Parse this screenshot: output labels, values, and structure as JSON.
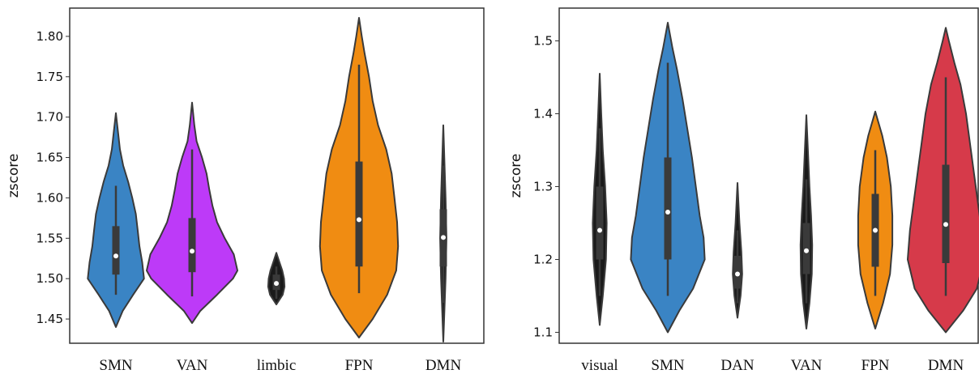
{
  "chart_data": [
    {
      "type": "violin",
      "ylabel": "zscore",
      "xlabel": "",
      "ylim": [
        1.42,
        1.835
      ],
      "yticks": [
        "1.45",
        "1.50",
        "1.55",
        "1.60",
        "1.65",
        "1.70",
        "1.75",
        "1.80"
      ],
      "categories": [
        "SMN",
        "VAN",
        "limbic",
        "FPN",
        "DMN"
      ],
      "violins": [
        {
          "label": "SMN",
          "color": "#3a84c4",
          "ymin": 1.44,
          "ymax": 1.705,
          "q1": 1.505,
          "median": 1.528,
          "q3": 1.565,
          "whisk_lo": 1.48,
          "whisk_hi": 1.615,
          "profile": [
            [
              1.44,
              0.0
            ],
            [
              1.46,
              0.15
            ],
            [
              1.48,
              0.38
            ],
            [
              1.5,
              0.62
            ],
            [
              1.52,
              0.58
            ],
            [
              1.54,
              0.52
            ],
            [
              1.56,
              0.48
            ],
            [
              1.58,
              0.44
            ],
            [
              1.6,
              0.36
            ],
            [
              1.62,
              0.27
            ],
            [
              1.64,
              0.16
            ],
            [
              1.66,
              0.09
            ],
            [
              1.68,
              0.05
            ],
            [
              1.705,
              0.0
            ]
          ]
        },
        {
          "label": "VAN",
          "color": "#bd3af8",
          "ymin": 1.445,
          "ymax": 1.718,
          "q1": 1.508,
          "median": 1.534,
          "q3": 1.575,
          "whisk_lo": 1.478,
          "whisk_hi": 1.66,
          "profile": [
            [
              1.445,
              0.0
            ],
            [
              1.46,
              0.18
            ],
            [
              1.48,
              0.55
            ],
            [
              1.5,
              0.9
            ],
            [
              1.51,
              1.0
            ],
            [
              1.53,
              0.92
            ],
            [
              1.55,
              0.72
            ],
            [
              1.57,
              0.55
            ],
            [
              1.59,
              0.45
            ],
            [
              1.61,
              0.38
            ],
            [
              1.63,
              0.32
            ],
            [
              1.65,
              0.22
            ],
            [
              1.67,
              0.1
            ],
            [
              1.69,
              0.05
            ],
            [
              1.718,
              0.0
            ]
          ]
        },
        {
          "label": "limbic",
          "color": "#1a1a1a",
          "ymin": 1.468,
          "ymax": 1.532,
          "q1": 1.486,
          "median": 1.494,
          "q3": 1.505,
          "whisk_lo": 1.475,
          "whisk_hi": 1.515,
          "profile": [
            [
              1.468,
              0.0
            ],
            [
              1.48,
              0.14
            ],
            [
              1.49,
              0.18
            ],
            [
              1.5,
              0.17
            ],
            [
              1.51,
              0.13
            ],
            [
              1.52,
              0.07
            ],
            [
              1.532,
              0.0
            ]
          ]
        },
        {
          "label": "FPN",
          "color": "#f08c12",
          "ymin": 1.427,
          "ymax": 1.823,
          "q1": 1.515,
          "median": 1.573,
          "q3": 1.645,
          "whisk_lo": 1.482,
          "whisk_hi": 1.765,
          "profile": [
            [
              1.427,
              0.0
            ],
            [
              1.45,
              0.3
            ],
            [
              1.48,
              0.62
            ],
            [
              1.51,
              0.82
            ],
            [
              1.54,
              0.86
            ],
            [
              1.57,
              0.84
            ],
            [
              1.6,
              0.78
            ],
            [
              1.63,
              0.72
            ],
            [
              1.66,
              0.6
            ],
            [
              1.69,
              0.42
            ],
            [
              1.72,
              0.3
            ],
            [
              1.75,
              0.22
            ],
            [
              1.78,
              0.12
            ],
            [
              1.8,
              0.06
            ],
            [
              1.823,
              0.0
            ]
          ]
        },
        {
          "label": "DMN",
          "color": "#1a1a1a",
          "ymin": 1.422,
          "ymax": 1.69,
          "q1": 1.515,
          "median": 1.551,
          "q3": 1.586,
          "whisk_lo": 1.47,
          "whisk_hi": 1.64,
          "profile": [
            [
              1.422,
              0.0
            ],
            [
              1.5,
              0.05
            ],
            [
              1.55,
              0.07
            ],
            [
              1.6,
              0.05
            ],
            [
              1.69,
              0.0
            ]
          ]
        }
      ]
    },
    {
      "type": "violin",
      "ylabel": "zscore",
      "xlabel": "",
      "ylim": [
        1.085,
        1.545
      ],
      "yticks": [
        "1.1",
        "1.2",
        "1.3",
        "1.4",
        "1.5"
      ],
      "categories": [
        "visual",
        "SMN",
        "DAN",
        "VAN",
        "FPN",
        "DMN"
      ],
      "violins": [
        {
          "label": "visual",
          "color": "#1a1a1a",
          "ymin": 1.11,
          "ymax": 1.455,
          "q1": 1.2,
          "median": 1.24,
          "q3": 1.3,
          "whisk_lo": 1.15,
          "whisk_hi": 1.38,
          "profile": [
            [
              1.11,
              0.0
            ],
            [
              1.15,
              0.08
            ],
            [
              1.2,
              0.16
            ],
            [
              1.25,
              0.18
            ],
            [
              1.3,
              0.14
            ],
            [
              1.35,
              0.08
            ],
            [
              1.4,
              0.04
            ],
            [
              1.455,
              0.0
            ]
          ]
        },
        {
          "label": "SMN",
          "color": "#3a84c4",
          "ymin": 1.1,
          "ymax": 1.525,
          "q1": 1.2,
          "median": 1.265,
          "q3": 1.34,
          "whisk_lo": 1.15,
          "whisk_hi": 1.47,
          "profile": [
            [
              1.1,
              0.0
            ],
            [
              1.13,
              0.3
            ],
            [
              1.16,
              0.65
            ],
            [
              1.2,
              0.95
            ],
            [
              1.23,
              0.92
            ],
            [
              1.26,
              0.82
            ],
            [
              1.3,
              0.72
            ],
            [
              1.34,
              0.62
            ],
            [
              1.38,
              0.5
            ],
            [
              1.42,
              0.38
            ],
            [
              1.46,
              0.24
            ],
            [
              1.49,
              0.12
            ],
            [
              1.525,
              0.0
            ]
          ]
        },
        {
          "label": "DAN",
          "color": "#1a1a1a",
          "ymin": 1.12,
          "ymax": 1.305,
          "q1": 1.16,
          "median": 1.18,
          "q3": 1.205,
          "whisk_lo": 1.14,
          "whisk_hi": 1.24,
          "profile": [
            [
              1.12,
              0.0
            ],
            [
              1.15,
              0.08
            ],
            [
              1.18,
              0.12
            ],
            [
              1.21,
              0.1
            ],
            [
              1.25,
              0.05
            ],
            [
              1.305,
              0.0
            ]
          ]
        },
        {
          "label": "VAN",
          "color": "#1a1a1a",
          "ymin": 1.105,
          "ymax": 1.398,
          "q1": 1.18,
          "median": 1.212,
          "q3": 1.25,
          "whisk_lo": 1.14,
          "whisk_hi": 1.31,
          "profile": [
            [
              1.105,
              0.0
            ],
            [
              1.14,
              0.08
            ],
            [
              1.18,
              0.14
            ],
            [
              1.22,
              0.15
            ],
            [
              1.26,
              0.12
            ],
            [
              1.3,
              0.08
            ],
            [
              1.35,
              0.04
            ],
            [
              1.398,
              0.0
            ]
          ]
        },
        {
          "label": "FPN",
          "color": "#f08c12",
          "ymin": 1.105,
          "ymax": 1.403,
          "q1": 1.19,
          "median": 1.24,
          "q3": 1.29,
          "whisk_lo": 1.15,
          "whisk_hi": 1.35,
          "profile": [
            [
              1.105,
              0.0
            ],
            [
              1.14,
              0.2
            ],
            [
              1.18,
              0.38
            ],
            [
              1.22,
              0.44
            ],
            [
              1.26,
              0.44
            ],
            [
              1.3,
              0.4
            ],
            [
              1.34,
              0.3
            ],
            [
              1.37,
              0.18
            ],
            [
              1.403,
              0.0
            ]
          ]
        },
        {
          "label": "DMN",
          "color": "#d63a4a",
          "ymin": 1.1,
          "ymax": 1.518,
          "q1": 1.195,
          "median": 1.248,
          "q3": 1.33,
          "whisk_lo": 1.15,
          "whisk_hi": 1.45,
          "profile": [
            [
              1.1,
              0.0
            ],
            [
              1.13,
              0.45
            ],
            [
              1.16,
              0.8
            ],
            [
              1.2,
              0.98
            ],
            [
              1.24,
              0.92
            ],
            [
              1.28,
              0.82
            ],
            [
              1.32,
              0.72
            ],
            [
              1.36,
              0.62
            ],
            [
              1.4,
              0.52
            ],
            [
              1.44,
              0.38
            ],
            [
              1.47,
              0.22
            ],
            [
              1.5,
              0.08
            ],
            [
              1.518,
              0.0
            ]
          ]
        }
      ]
    }
  ]
}
